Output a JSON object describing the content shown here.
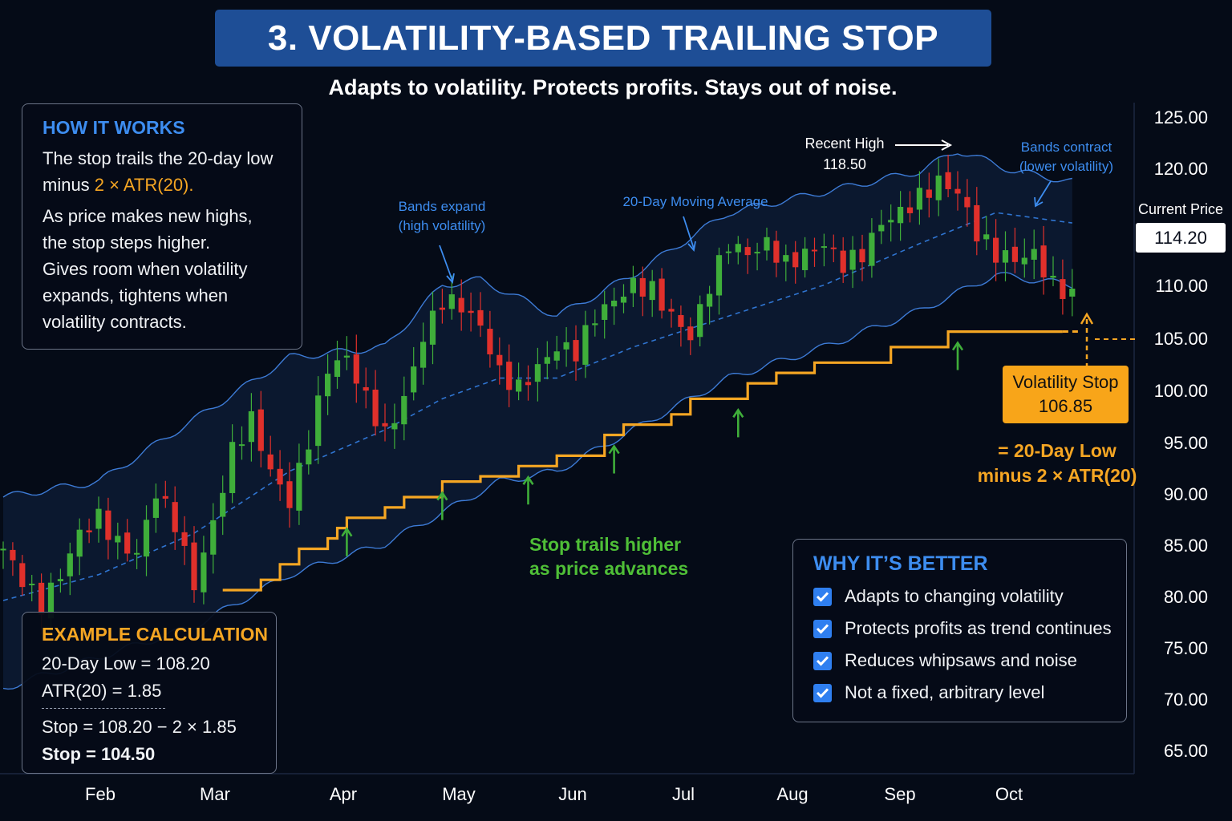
{
  "title": "3. VOLATILITY-BASED TRAILING STOP",
  "subtitle": "Adapts to volatility. Protects profits. Stays out of noise.",
  "how_panel": {
    "heading": "HOW IT WORKS",
    "line1": "The stop trails the 20-day low",
    "line2_prefix": "minus ",
    "line2_highlight": "2 × ATR(20).",
    "line3": "As price makes new highs,",
    "line4": "the stop steps higher.",
    "line5": "Gives room when volatility",
    "line6": "expands, tightens when",
    "line7": "volatility contracts."
  },
  "example_panel": {
    "heading": "EXAMPLE CALCULATION",
    "row1": "20-Day Low = 108.20",
    "row2": "ATR(20) = 1.85",
    "row3": "Stop = 108.20 − 2 × 1.85",
    "row4": "Stop = 104.50"
  },
  "why_panel": {
    "heading": "WHY IT’S BETTER",
    "items": [
      "Adapts to changing volatility",
      "Protects profits as trend continues",
      "Reduces whipsaws and noise",
      "Not a fixed, arbitrary level"
    ]
  },
  "current_price": {
    "label": "Current Price",
    "value": "114.20"
  },
  "volatility_stop": {
    "label": "Volatility Stop",
    "value": "106.85"
  },
  "formula": {
    "line1": "= 20-Day Low",
    "line2": "minus 2 × ATR(20)"
  },
  "annotations": {
    "bands_expand_1": "Bands expand",
    "bands_expand_2": "(high volatility)",
    "moving_average": "20-Day Moving Average",
    "recent_high_1": "Recent High",
    "recent_high_2": "118.50",
    "bands_contract_1": "Bands contract",
    "bands_contract_2": "(lower volatility)",
    "stop_trails_1": "Stop trails higher",
    "stop_trails_2": "as price advances"
  },
  "colors": {
    "background": "#050b17",
    "title_banner": "#1e4e96",
    "candle_up": "#3fae3a",
    "candle_down": "#e0302b",
    "band_line": "#3d7bd6",
    "moving_average": "#2f74d0",
    "stop_line": "#f5a623",
    "arrow_green": "#3fae3a",
    "annotation_blue": "#3d8df0"
  },
  "chart_data": {
    "type": "candlestick",
    "y_ticks": [
      "125.00",
      "120.00",
      "110.00",
      "105.00",
      "100.00",
      "95.00",
      "90.00",
      "85.00",
      "80.00",
      "75.00",
      "70.00",
      "65.00"
    ],
    "x_ticks": [
      "Feb",
      "Mar",
      "Apr",
      "May",
      "Jun",
      "Jul",
      "Aug",
      "Sep",
      "Oct"
    ],
    "ylim": [
      62,
      125
    ],
    "close_anchors": [
      [
        0,
        84.5
      ],
      [
        2,
        81.5
      ],
      [
        4,
        79.0
      ],
      [
        6,
        82.0
      ],
      [
        8,
        86.0
      ],
      [
        10,
        87.5
      ],
      [
        12,
        85.0
      ],
      [
        14,
        84.0
      ],
      [
        16,
        90.0
      ],
      [
        18,
        87.0
      ],
      [
        20,
        81.0
      ],
      [
        22,
        87.0
      ],
      [
        24,
        94.0
      ],
      [
        26,
        97.0
      ],
      [
        28,
        92.0
      ],
      [
        30,
        89.0
      ],
      [
        32,
        95.0
      ],
      [
        34,
        102.0
      ],
      [
        36,
        103.0
      ],
      [
        38,
        99.0
      ],
      [
        40,
        95.5
      ],
      [
        42,
        99.0
      ],
      [
        44,
        105.0
      ],
      [
        46,
        108.5
      ],
      [
        48,
        108.0
      ],
      [
        50,
        106.0
      ],
      [
        52,
        101.5
      ],
      [
        54,
        100.0
      ],
      [
        56,
        102.0
      ],
      [
        58,
        104.0
      ],
      [
        60,
        103.5
      ],
      [
        62,
        107.0
      ],
      [
        64,
        108.5
      ],
      [
        66,
        110.0
      ],
      [
        68,
        109.5
      ],
      [
        70,
        107.0
      ],
      [
        72,
        105.0
      ],
      [
        74,
        110.0
      ],
      [
        76,
        114.0
      ],
      [
        78,
        113.0
      ],
      [
        80,
        114.0
      ],
      [
        82,
        112.0
      ],
      [
        84,
        113.0
      ],
      [
        86,
        114.0
      ],
      [
        88,
        112.0
      ],
      [
        90,
        113.0
      ],
      [
        92,
        116.0
      ],
      [
        94,
        117.0
      ],
      [
        96,
        118.5
      ],
      [
        98,
        120.0
      ],
      [
        100,
        119.0
      ],
      [
        102,
        115.0
      ],
      [
        104,
        113.0
      ],
      [
        106,
        112.5
      ],
      [
        108,
        113.0
      ],
      [
        110,
        110.0
      ],
      [
        112,
        109.0
      ]
    ],
    "bands": {
      "upper": [
        [
          0,
          89.5
        ],
        [
          10,
          91
        ],
        [
          20,
          97
        ],
        [
          30,
          103
        ],
        [
          40,
          104
        ],
        [
          46,
          110
        ],
        [
          50,
          110.5
        ],
        [
          58,
          107
        ],
        [
          66,
          111
        ],
        [
          76,
          117
        ],
        [
          86,
          119
        ],
        [
          96,
          121
        ],
        [
          100,
          123
        ],
        [
          106,
          121
        ],
        [
          112,
          120
        ]
      ],
      "middle": [
        [
          0,
          79.5
        ],
        [
          10,
          82
        ],
        [
          20,
          86
        ],
        [
          30,
          92
        ],
        [
          40,
          96
        ],
        [
          46,
          99
        ],
        [
          52,
          101
        ],
        [
          58,
          101
        ],
        [
          66,
          104
        ],
        [
          76,
          107
        ],
        [
          86,
          110
        ],
        [
          96,
          114
        ],
        [
          104,
          117
        ],
        [
          112,
          116
        ]
      ],
      "lower": [
        [
          0,
          71
        ],
        [
          10,
          74
        ],
        [
          20,
          77
        ],
        [
          30,
          82
        ],
        [
          40,
          85
        ],
        [
          46,
          88
        ],
        [
          52,
          91
        ],
        [
          58,
          92
        ],
        [
          66,
          96
        ],
        [
          76,
          101
        ],
        [
          86,
          104
        ],
        [
          96,
          107.5
        ],
        [
          104,
          111
        ],
        [
          112,
          110
        ]
      ]
    },
    "stop_steps": [
      [
        23,
        80.5
      ],
      [
        27,
        81.5
      ],
      [
        29,
        83
      ],
      [
        31,
        84.5
      ],
      [
        34,
        85.5
      ],
      [
        35,
        86.5
      ],
      [
        36,
        87.5
      ],
      [
        40,
        88.5
      ],
      [
        42,
        89.5
      ],
      [
        46,
        91
      ],
      [
        50,
        91.5
      ],
      [
        54,
        92.5
      ],
      [
        58,
        93.5
      ],
      [
        63,
        95.5
      ],
      [
        65,
        96.5
      ],
      [
        70,
        97.5
      ],
      [
        72,
        99
      ],
      [
        78,
        100.5
      ],
      [
        81,
        101.5
      ],
      [
        85,
        102.5
      ],
      [
        93,
        104
      ],
      [
        99,
        105.5
      ],
      [
        106,
        105.5
      ]
    ],
    "stop_end_index": 111,
    "green_arrow_indices": [
      36,
      46,
      55,
      64,
      77,
      100
    ]
  }
}
